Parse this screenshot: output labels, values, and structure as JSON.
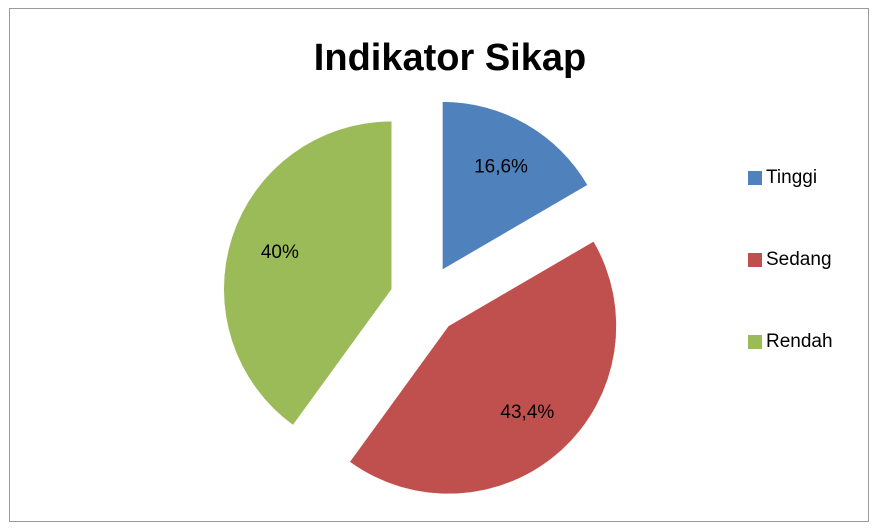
{
  "chart_data": {
    "type": "pie",
    "title": "Indikator Sikap",
    "categories": [
      "Tinggi",
      "Sedang",
      "Rendah"
    ],
    "values": [
      16.6,
      43.4,
      40
    ],
    "value_labels": [
      "16,6%",
      "43,4%",
      "40%"
    ],
    "colors": [
      "#4f81bd",
      "#c0504d",
      "#9bbb59"
    ],
    "legend": "right"
  }
}
